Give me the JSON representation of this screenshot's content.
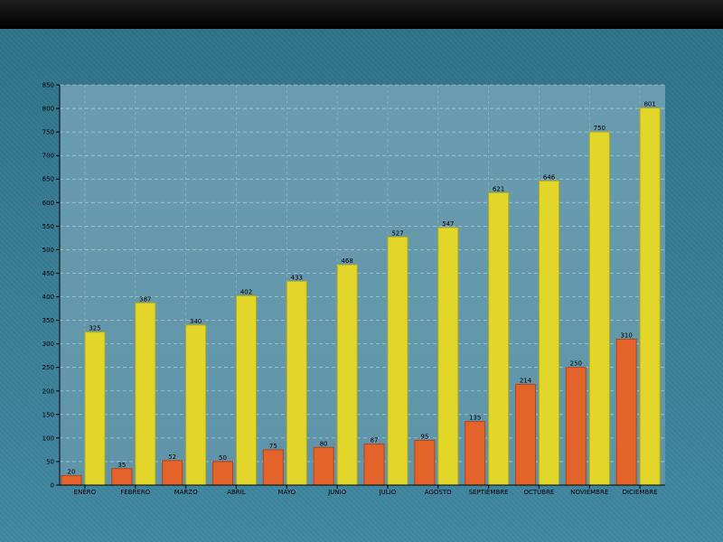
{
  "colors": {
    "series_a": "#e4632a",
    "series_b": "#e2d62b",
    "plot_bg": "#6699aa",
    "page_bg": "#3d7f98",
    "grid": "#c8dce4"
  },
  "chart_data": {
    "type": "bar",
    "title": "",
    "xlabel": "",
    "ylabel": "",
    "ylim": [
      0,
      850
    ],
    "y_ticks": [
      0,
      50,
      100,
      150,
      200,
      250,
      300,
      350,
      400,
      450,
      500,
      550,
      600,
      650,
      700,
      750,
      800,
      850
    ],
    "grid": true,
    "categories": [
      "ENERO",
      "FEBRERO",
      "MARZO",
      "ABRIL",
      "MAYO",
      "JUNIO",
      "JULIO",
      "AGOSTO",
      "SEPTIEMBRE",
      "OCTUBRE",
      "NOVIEMBRE",
      "DICIEMBRE"
    ],
    "series": [
      {
        "values": [
          20,
          35,
          52,
          50,
          75,
          80,
          87,
          95,
          135,
          214,
          250,
          310
        ]
      },
      {
        "values": [
          325,
          387,
          340,
          402,
          433,
          468,
          527,
          547,
          621,
          646,
          750,
          801
        ]
      }
    ]
  }
}
